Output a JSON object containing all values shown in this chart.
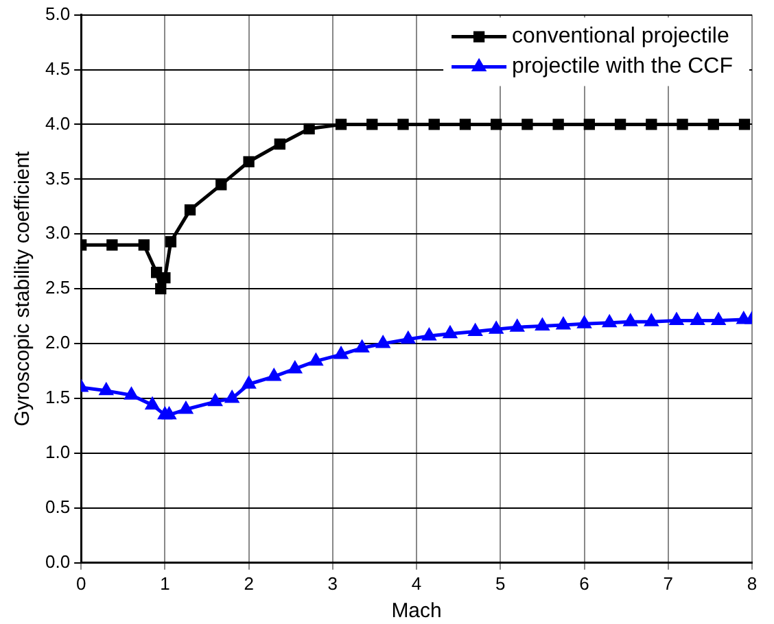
{
  "chart_data": {
    "type": "line",
    "xlabel": "Mach",
    "ylabel": "Gyroscopic stability coefficient",
    "xlim": [
      0,
      8
    ],
    "xticks": [
      0,
      1,
      2,
      3,
      4,
      5,
      6,
      7,
      8
    ],
    "ylim": [
      0,
      5
    ],
    "yticks": [
      {
        "value": 0,
        "label": "0.0"
      },
      {
        "value": 0.5,
        "label": "0.5"
      },
      {
        "value": 1,
        "label": "1.0"
      },
      {
        "value": 1.5,
        "label": "1.5"
      },
      {
        "value": 2,
        "label": "2.0"
      },
      {
        "value": 2.5,
        "label": "2.5"
      },
      {
        "value": 3,
        "label": "3.0"
      },
      {
        "value": 3.5,
        "label": "3.5"
      },
      {
        "value": 4,
        "label": "4.0"
      },
      {
        "value": 4.5,
        "label": "4.5"
      },
      {
        "value": 5,
        "label": "5.0"
      }
    ],
    "grid": true,
    "legend": "top right",
    "line_style": "solid",
    "series": [
      {
        "name": "conventional projectile",
        "color": "#000000",
        "marker": "square",
        "x": [
          0,
          0.37,
          0.75,
          0.9,
          0.95,
          1.0,
          1.07,
          1.3,
          1.67,
          2.0,
          2.37,
          2.72,
          3.1,
          3.47,
          3.84,
          4.21,
          4.58,
          4.95,
          5.32,
          5.69,
          6.06,
          6.43,
          6.8,
          7.17,
          7.54,
          7.91
        ],
        "values": [
          2.9,
          2.9,
          2.9,
          2.65,
          2.5,
          2.6,
          2.93,
          3.22,
          3.45,
          3.66,
          3.82,
          3.96,
          4.0,
          4.0,
          4.0,
          4.0,
          4.0,
          4.0,
          4.0,
          4.0,
          4.0,
          4.0,
          4.0,
          4.0,
          4.0,
          4.0
        ]
      },
      {
        "name": "projectile with the CCF",
        "color": "#0000ff",
        "marker": "triangle",
        "x": [
          0,
          0.3,
          0.6,
          0.85,
          1.0,
          1.05,
          1.25,
          1.6,
          1.8,
          2.0,
          2.3,
          2.55,
          2.8,
          3.1,
          3.35,
          3.6,
          3.9,
          4.15,
          4.4,
          4.7,
          4.95,
          5.2,
          5.5,
          5.75,
          6.0,
          6.3,
          6.55,
          6.8,
          7.1,
          7.35,
          7.6,
          7.9,
          8.0
        ],
        "values": [
          1.6,
          1.57,
          1.53,
          1.44,
          1.35,
          1.35,
          1.4,
          1.47,
          1.5,
          1.63,
          1.7,
          1.77,
          1.84,
          1.9,
          1.96,
          2.0,
          2.04,
          2.07,
          2.09,
          2.11,
          2.13,
          2.15,
          2.16,
          2.17,
          2.18,
          2.19,
          2.2,
          2.2,
          2.21,
          2.21,
          2.21,
          2.22,
          2.22
        ]
      }
    ]
  }
}
